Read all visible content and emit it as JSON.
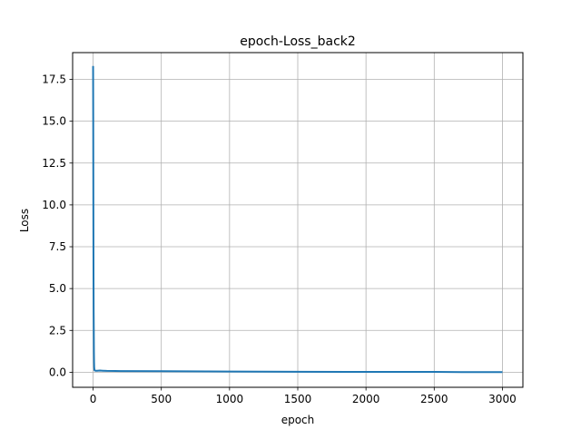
{
  "chart_data": {
    "type": "line",
    "title": "epoch-Loss_back2",
    "xlabel": "epoch",
    "ylabel": "Loss",
    "xlim": [
      -150,
      3150
    ],
    "ylim": [
      -0.9,
      19.1
    ],
    "grid": true,
    "x_ticks": [
      0,
      500,
      1000,
      1500,
      2000,
      2500,
      3000
    ],
    "x_tick_labels": [
      "0",
      "500",
      "1000",
      "1500",
      "2000",
      "2500",
      "3000"
    ],
    "y_ticks": [
      0.0,
      2.5,
      5.0,
      7.5,
      10.0,
      12.5,
      15.0,
      17.5
    ],
    "y_tick_labels": [
      "0.0",
      "2.5",
      "5.0",
      "7.5",
      "10.0",
      "12.5",
      "15.0",
      "17.5"
    ],
    "series": [
      {
        "color": "#1f77b4",
        "x": [
          0,
          1,
          2,
          3,
          4,
          5,
          6,
          7,
          8,
          10,
          12,
          15,
          20,
          30,
          50,
          70,
          100,
          200,
          500,
          1000,
          1500,
          2000,
          2500,
          2700,
          3000
        ],
        "y": [
          18.3,
          15.0,
          10.0,
          6.0,
          3.7,
          2.5,
          1.2,
          0.6,
          0.3,
          0.12,
          0.1,
          0.1,
          0.09,
          0.09,
          0.1,
          0.09,
          0.08,
          0.07,
          0.06,
          0.04,
          0.03,
          0.02,
          0.02,
          0.01,
          0.01
        ]
      }
    ]
  }
}
